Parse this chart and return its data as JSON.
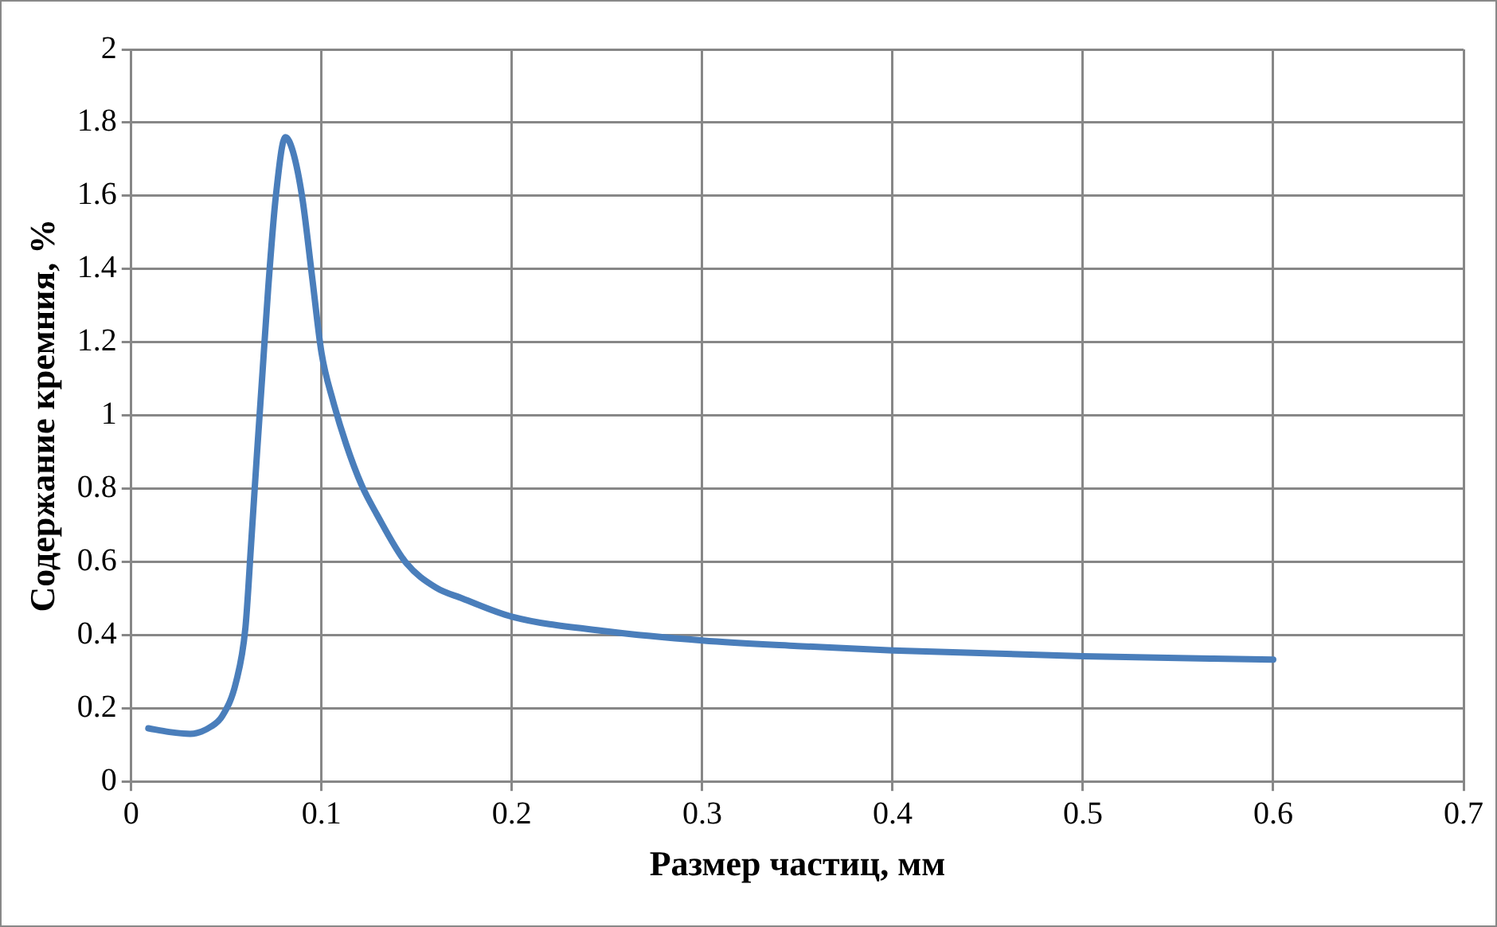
{
  "chart_data": {
    "type": "line",
    "xlabel": "Размер частиц, мм",
    "ylabel": "Содержание кремния, %",
    "x": [
      0.009,
      0.02,
      0.031,
      0.042,
      0.048,
      0.055,
      0.06,
      0.063,
      0.066,
      0.069,
      0.072,
      0.076,
      0.081,
      0.085,
      0.09,
      0.095,
      0.1,
      0.106,
      0.113,
      0.121,
      0.129,
      0.144,
      0.16,
      0.174,
      0.2,
      0.25,
      0.3,
      0.35,
      0.4,
      0.5,
      0.6
    ],
    "series": [
      {
        "color": "#4a7ebb",
        "values": [
          0.145,
          0.135,
          0.13,
          0.15,
          0.18,
          0.27,
          0.42,
          0.65,
          0.89,
          1.12,
          1.35,
          1.6,
          1.76,
          1.72,
          1.59,
          1.38,
          1.17,
          1.04,
          0.92,
          0.81,
          0.73,
          0.6,
          0.53,
          0.5,
          0.45,
          0.41,
          0.385,
          0.37,
          0.358,
          0.342,
          0.333
        ]
      }
    ],
    "xlim": [
      0,
      0.7
    ],
    "xticks": [
      0,
      0.1,
      0.2,
      0.3,
      0.4,
      0.5,
      0.6,
      0.7
    ],
    "ylim": [
      0,
      2
    ],
    "yticks": [
      0,
      0.2,
      0.4,
      0.6,
      0.8,
      1,
      1.2,
      1.4,
      1.6,
      1.8,
      2
    ],
    "grid": true,
    "legend": false,
    "marker": "none",
    "line_style": "solid"
  }
}
